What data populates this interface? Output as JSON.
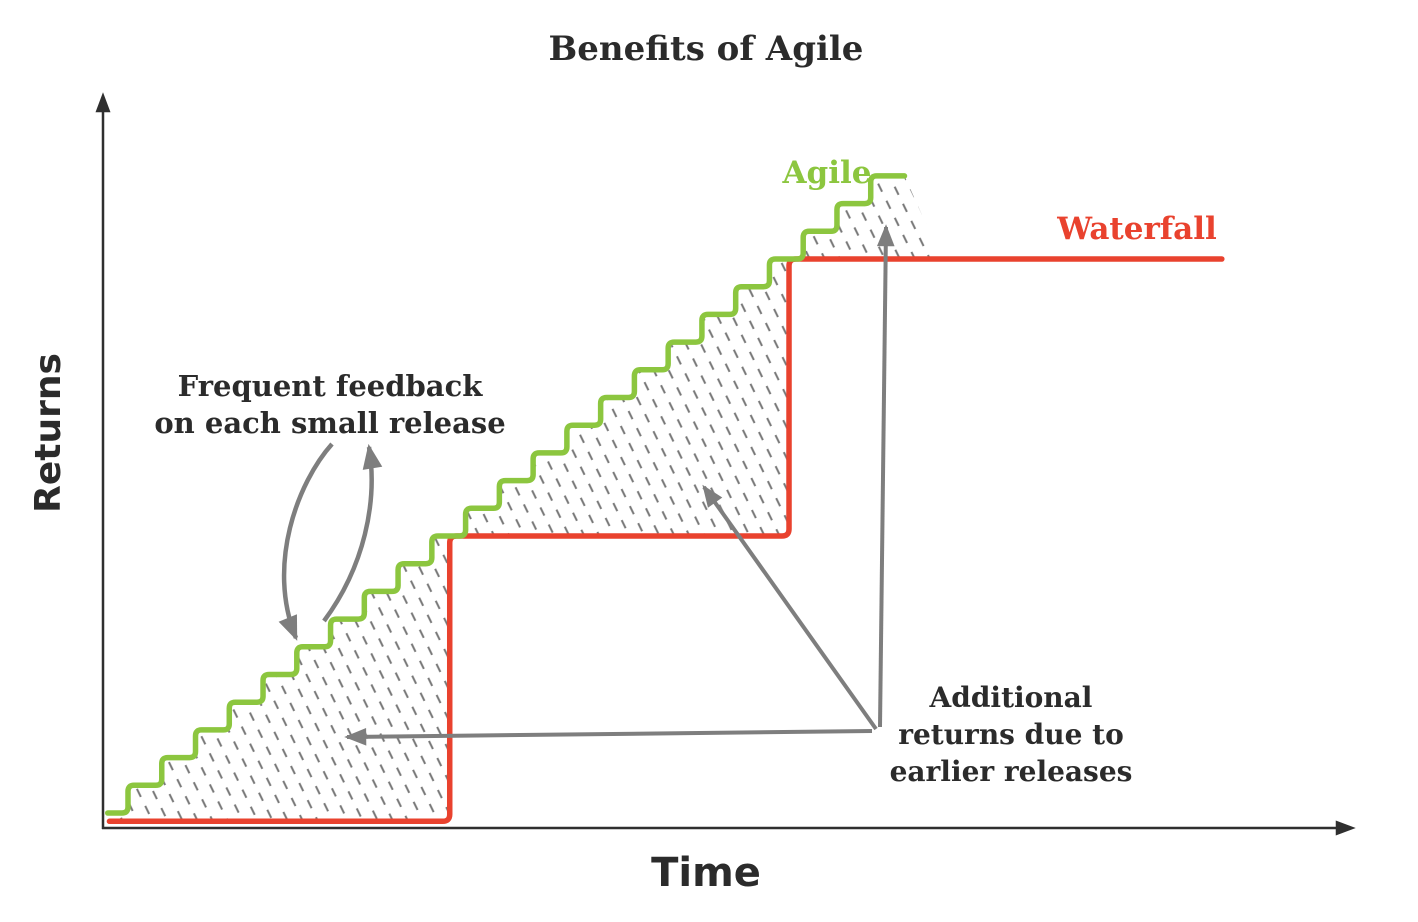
{
  "chart_data": {
    "type": "line",
    "title": "Benefits of Agile",
    "xlabel": "Time",
    "ylabel": "Returns",
    "grid": false,
    "legend_position": "inline-labels",
    "axes": {
      "color": "#2f2f2f",
      "style": "arrow-tipped",
      "x_range_units": [
        0,
        36
      ],
      "y_range_units": [
        0,
        26
      ]
    },
    "series": [
      {
        "name": "Agile",
        "label": "Agile",
        "color": "#8cc63f",
        "shape": "staircase",
        "start_x": -0.6,
        "first_step_x": 0,
        "n_steps": 23,
        "step_width": 1,
        "step_height": 1,
        "end_x": 23,
        "final_value": 23
      },
      {
        "name": "Waterfall",
        "label": "Waterfall",
        "color": "#e9422e",
        "shape": "step",
        "points": [
          [
            -0.55,
            -0.3
          ],
          [
            9.53,
            -0.3
          ],
          [
            9.53,
            10
          ],
          [
            19.58,
            10
          ],
          [
            19.58,
            20
          ],
          [
            32.4,
            20
          ]
        ]
      }
    ],
    "shaded_region": {
      "between": [
        "Agile",
        "Waterfall"
      ],
      "style": "diagonal-dashed-hatch",
      "hatch_color": "#777777",
      "meaning": "Additional returns due to earlier releases"
    },
    "annotation_color": "#7e7e7e",
    "text_color": "#2b2b2b",
    "annotations": [
      {
        "id": "frequent-feedback",
        "lines": [
          "Frequent feedback",
          "on each small release"
        ],
        "points_to": "individual steps of the Agile staircase"
      },
      {
        "id": "additional-returns",
        "lines": [
          "Additional",
          "returns due to",
          "earlier releases"
        ],
        "points_to": "hatched areas between Agile and Waterfall curves"
      }
    ]
  }
}
